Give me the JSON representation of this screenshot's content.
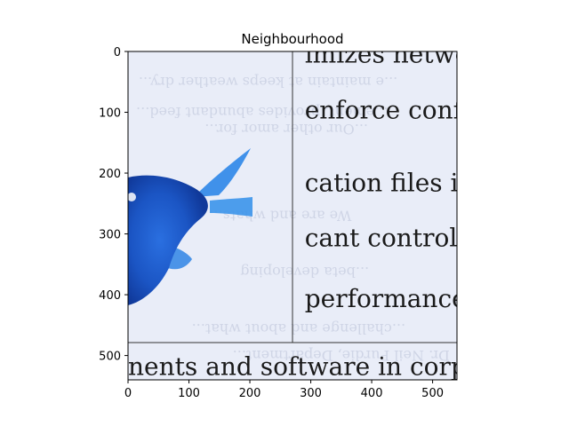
{
  "chart_data": {
    "type": "image",
    "title": "Neighbourhood",
    "xlabel": "",
    "ylabel": "",
    "xlim": [
      0,
      540
    ],
    "ylim": [
      540,
      0
    ],
    "xticks": [
      0,
      100,
      200,
      300,
      400,
      500
    ],
    "yticks": [
      0,
      100,
      200,
      300,
      400,
      500
    ],
    "grid": false,
    "image_text_lines": [
      "imizes netwo",
      "enforce conf",
      "cation files ir",
      "cant control",
      "performance",
      "nents and software in corpo"
    ],
    "image_ghost_lines": [
      "...e maintain at keeps weather dry...",
      "...ement, provides abundant feed...",
      "...Our other amor for...",
      "We are and whats...",
      "...beta developing",
      "...challenge and about what...",
      "Dr. Neil Purdie, Department..."
    ],
    "colors": {
      "image_bg": "#e9edf8",
      "fish_blue": "#1f5fd0",
      "fish_dark": "#10399a",
      "frame": "#000000"
    }
  }
}
